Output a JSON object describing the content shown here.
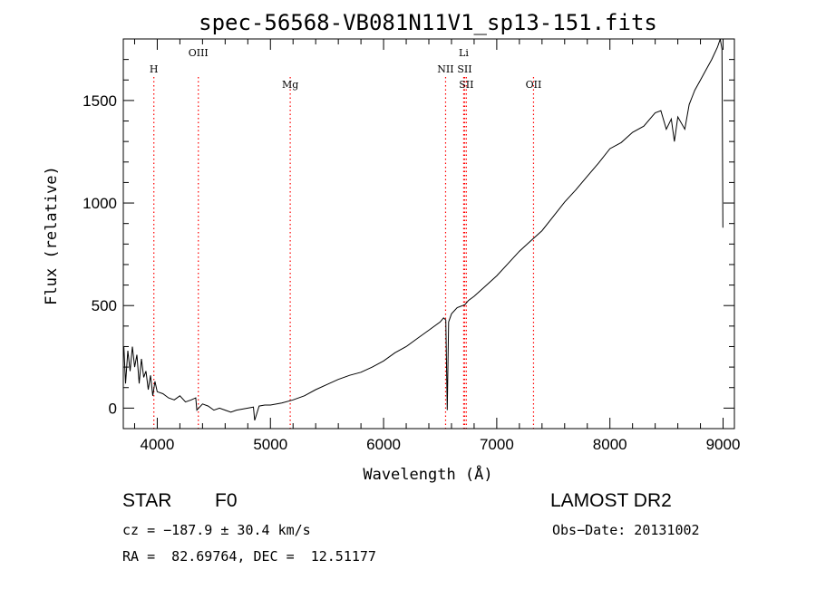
{
  "chart_data": {
    "type": "line",
    "title": "spec-56568-VB081N11V1_sp13-151.fits",
    "xlabel": "Wavelength (Å)",
    "ylabel": "Flux (relative)",
    "xlim": [
      3700,
      9100
    ],
    "ylim": [
      -100,
      1800
    ],
    "xticks": [
      4000,
      5000,
      6000,
      7000,
      8000,
      9000
    ],
    "yticks": [
      0,
      500,
      1000,
      1500
    ],
    "grid": false,
    "line_color": "#000000",
    "marker_color": "#ff0000",
    "series": [
      {
        "x": [
          3705,
          3720,
          3740,
          3760,
          3780,
          3800,
          3820,
          3840,
          3860,
          3880,
          3900,
          3920,
          3940,
          3960,
          3980,
          4000,
          4050,
          4100,
          4150,
          4200,
          4250,
          4300,
          4340,
          4350,
          4400,
          4450,
          4500,
          4550,
          4600,
          4650,
          4700,
          4750,
          4800,
          4850,
          4861,
          4900,
          4950,
          5000,
          5100,
          5200,
          5300,
          5400,
          5500,
          5600,
          5700,
          5800,
          5900,
          6000,
          6100,
          6200,
          6300,
          6400,
          6500,
          6530,
          6550,
          6563,
          6575,
          6600,
          6650,
          6700,
          6720,
          6750,
          6800,
          6900,
          7000,
          7100,
          7200,
          7300,
          7400,
          7500,
          7600,
          7700,
          7800,
          7900,
          8000,
          8100,
          8200,
          8300,
          8400,
          8450,
          8498,
          8542,
          8570,
          8600,
          8662,
          8700,
          8750,
          8800,
          8850,
          8900,
          8950,
          8975,
          8990,
          8998
        ],
        "y": [
          300,
          120,
          280,
          180,
          300,
          200,
          260,
          120,
          240,
          150,
          180,
          90,
          160,
          60,
          130,
          80,
          70,
          50,
          40,
          60,
          30,
          40,
          50,
          -10,
          20,
          10,
          -10,
          0,
          -10,
          -20,
          -10,
          -5,
          0,
          5,
          -60,
          10,
          15,
          15,
          25,
          40,
          60,
          90,
          115,
          140,
          160,
          175,
          200,
          230,
          270,
          300,
          340,
          380,
          420,
          440,
          430,
          -10,
          420,
          460,
          490,
          500,
          505,
          525,
          545,
          595,
          645,
          705,
          765,
          815,
          865,
          935,
          1005,
          1065,
          1130,
          1195,
          1265,
          1295,
          1345,
          1375,
          1440,
          1450,
          1360,
          1410,
          1300,
          1420,
          1360,
          1480,
          1550,
          1600,
          1650,
          1700,
          1760,
          1800,
          1750,
          880
        ]
      }
    ],
    "line_markers": [
      {
        "name": "H",
        "x": 3970,
        "row": 3
      },
      {
        "name": "OIII",
        "x": 4363,
        "row": 2
      },
      {
        "name": "Mg",
        "x": 5175,
        "row": 4
      },
      {
        "name": "NII",
        "x": 6548,
        "row": 3
      },
      {
        "name": "Li",
        "x": 6708,
        "row": 1
      },
      {
        "name": "SII",
        "x": 6716,
        "row": 3
      },
      {
        "name": "SII",
        "x": 6731,
        "row": 4
      },
      {
        "name": "OII",
        "x": 7325,
        "row": 4
      }
    ]
  },
  "info": {
    "object_class": "STAR",
    "subclass": "F0",
    "survey": "LAMOST DR2",
    "cz": "cz = −187.9 ± 30.4 km/s",
    "obs_date": "Obs−Date: 20131002",
    "coords": "RA =  82.69764, DEC =  12.51177"
  }
}
